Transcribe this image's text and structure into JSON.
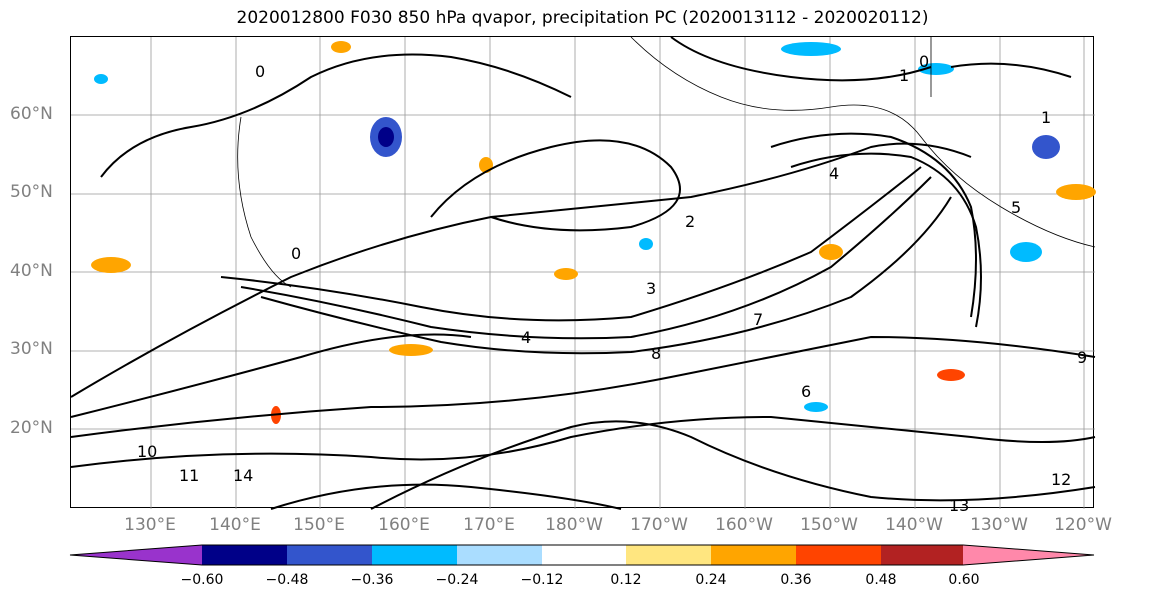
{
  "title": "2020012800 F030 850 hPa qvapor, precipitation PC (2020013112 - 2020020112)",
  "lat_labels": [
    "60°N",
    "50°N",
    "40°N",
    "30°N",
    "20°N"
  ],
  "lon_labels": [
    "130°E",
    "140°E",
    "150°E",
    "160°E",
    "170°E",
    "180°W",
    "170°W",
    "160°W",
    "150°W",
    "140°W",
    "130°W",
    "120°W"
  ],
  "colorbar": {
    "ticks": [
      "−0.60",
      "−0.48",
      "−0.36",
      "−0.24",
      "−0.12",
      "0.12",
      "0.24",
      "0.36",
      "0.48",
      "0.60"
    ],
    "colors": [
      "#9933cc",
      "#000088",
      "#3355cc",
      "#00bbff",
      "#aaddff",
      "#ffffff",
      "#ffe680",
      "#ffa500",
      "#ff4400",
      "#b22222",
      "#ff88aa"
    ]
  },
  "contour_labels": [
    "0",
    "0",
    "0",
    "1",
    "1",
    "2",
    "3",
    "4",
    "4",
    "5",
    "6",
    "7",
    "8",
    "9",
    "10",
    "11",
    "12",
    "13",
    "14"
  ]
}
